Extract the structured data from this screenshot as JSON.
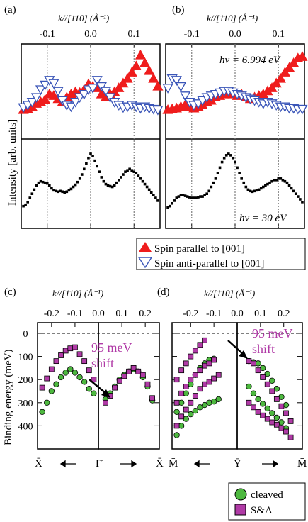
{
  "colors": {
    "red": "#ef1c1c",
    "blue": "#3a55b8",
    "green": "#4db83f",
    "purple": "#b03aa6",
    "axis": "#000000",
    "guide": "#7f7f7f"
  },
  "panel_a": {
    "label": "(a)",
    "kaxis_label": "k//[1̄10] (Å⁻¹)",
    "ticks": [
      "-0.1",
      "0.0",
      "0.1"
    ]
  },
  "panel_b": {
    "label": "(b)",
    "kaxis_label": "k//[1̄10] (Å⁻¹)",
    "ticks": [
      "-0.1",
      "0.0",
      "0.1"
    ],
    "hv_top": "hv = 6.994 eV",
    "hv_bottom": "hv = 30 eV"
  },
  "spin_legend": {
    "parallel": "Spin parallel to [001]",
    "antiparallel": "Spin anti-parallel to [001]"
  },
  "y_label_top": "Intensity [arb. units]",
  "panel_c": {
    "label": "(c)",
    "kaxis_label": "k//[1̄10] (Å⁻¹)",
    "ticks": [
      "-0.2",
      "-0.1",
      "0.0",
      "0.1",
      "0.2"
    ],
    "points": {
      "left": "X̄",
      "mid": "Γ̄",
      "right": "X̄"
    },
    "shift_line1": "95 meV",
    "shift_line2": "shift"
  },
  "panel_d": {
    "label": "(d)",
    "kaxis_label": "k//[1̄10] (Å⁻¹)",
    "ticks": [
      "-0.2",
      "-0.1",
      "0.0",
      "0.1",
      "0.2"
    ],
    "points": {
      "left": "M̄",
      "mid": "Ȳ",
      "right": "M̄"
    },
    "shift_line1": "95 meV",
    "shift_line2": "shift"
  },
  "y_label_bottom": "Binding energy (meV)",
  "bottom_legend": {
    "cleaved": "cleaved",
    "sa": "S&A"
  },
  "chart_data": [
    {
      "type": "scatter",
      "panel": "a-top",
      "xlabel": "k//[1̄10] (Å⁻¹)",
      "ylabel": "Intensity [arb. units]",
      "xlim": [
        -0.16,
        0.16
      ],
      "series": [
        {
          "name": "Spin parallel to [001]",
          "marker": "filled-triangle-up",
          "color": "#ef1c1c",
          "x": [
            -0.155,
            -0.145,
            -0.135,
            -0.125,
            -0.115,
            -0.105,
            -0.095,
            -0.085,
            -0.075,
            -0.065,
            -0.055,
            -0.045,
            -0.035,
            -0.025,
            -0.015,
            -0.005,
            0.005,
            0.015,
            0.025,
            0.035,
            0.045,
            0.055,
            0.065,
            0.075,
            0.085,
            0.095,
            0.105,
            0.115,
            0.125,
            0.135,
            0.145,
            0.155
          ],
          "y": [
            0.32,
            0.33,
            0.36,
            0.4,
            0.42,
            0.45,
            0.52,
            0.5,
            0.46,
            0.42,
            0.48,
            0.52,
            0.55,
            0.54,
            0.58,
            0.65,
            0.62,
            0.6,
            0.52,
            0.48,
            0.52,
            0.55,
            0.6,
            0.66,
            0.72,
            0.8,
            0.88,
            1.02,
            0.92,
            0.82,
            0.72,
            0.62
          ]
        },
        {
          "name": "Spin anti-parallel to [001]",
          "marker": "open-triangle-down",
          "color": "#3a55b8",
          "x": [
            -0.155,
            -0.145,
            -0.135,
            -0.125,
            -0.115,
            -0.105,
            -0.095,
            -0.085,
            -0.075,
            -0.065,
            -0.055,
            -0.045,
            -0.035,
            -0.025,
            -0.015,
            -0.005,
            0.005,
            0.015,
            0.025,
            0.035,
            0.045,
            0.055,
            0.065,
            0.075,
            0.085,
            0.095,
            0.105,
            0.115,
            0.125,
            0.135,
            0.145,
            0.155
          ],
          "y": [
            0.35,
            0.38,
            0.42,
            0.48,
            0.58,
            0.64,
            0.7,
            0.66,
            0.56,
            0.44,
            0.38,
            0.36,
            0.42,
            0.48,
            0.52,
            0.58,
            0.6,
            0.7,
            0.62,
            0.56,
            0.48,
            0.42,
            0.38,
            0.35,
            0.36,
            0.38,
            0.36,
            0.34,
            0.36,
            0.34,
            0.33,
            0.32
          ]
        }
      ]
    },
    {
      "type": "scatter",
      "panel": "a-bottom",
      "xlabel": "k//[1̄10] (Å⁻¹)",
      "ylabel": "Intensity [arb. units]",
      "xlim": [
        -0.16,
        0.16
      ],
      "series": [
        {
          "name": "hv = 30 eV",
          "marker": "square",
          "color": "#000000",
          "x": [
            -0.155,
            -0.15,
            -0.145,
            -0.14,
            -0.135,
            -0.13,
            -0.125,
            -0.12,
            -0.115,
            -0.11,
            -0.105,
            -0.1,
            -0.095,
            -0.09,
            -0.085,
            -0.08,
            -0.075,
            -0.07,
            -0.065,
            -0.06,
            -0.055,
            -0.05,
            -0.045,
            -0.04,
            -0.035,
            -0.03,
            -0.025,
            -0.02,
            -0.015,
            -0.01,
            -0.005,
            0.0,
            0.005,
            0.01,
            0.015,
            0.02,
            0.025,
            0.03,
            0.035,
            0.04,
            0.045,
            0.05,
            0.055,
            0.06,
            0.065,
            0.07,
            0.075,
            0.08,
            0.085,
            0.09,
            0.095,
            0.1,
            0.105,
            0.11,
            0.115,
            0.12,
            0.125,
            0.13,
            0.135,
            0.14,
            0.145,
            0.15,
            0.155
          ],
          "y": [
            0.22,
            0.24,
            0.28,
            0.34,
            0.4,
            0.46,
            0.52,
            0.56,
            0.58,
            0.57,
            0.56,
            0.55,
            0.52,
            0.48,
            0.45,
            0.44,
            0.43,
            0.44,
            0.43,
            0.42,
            0.43,
            0.45,
            0.47,
            0.5,
            0.53,
            0.57,
            0.62,
            0.68,
            0.76,
            0.84,
            0.92,
            0.98,
            0.95,
            0.88,
            0.8,
            0.72,
            0.64,
            0.58,
            0.54,
            0.52,
            0.51,
            0.5,
            0.52,
            0.56,
            0.6,
            0.64,
            0.68,
            0.72,
            0.74,
            0.76,
            0.74,
            0.72,
            0.7,
            0.66,
            0.62,
            0.58,
            0.54,
            0.5,
            0.46,
            0.42,
            0.38,
            0.34,
            0.3
          ]
        }
      ]
    },
    {
      "type": "scatter",
      "panel": "b-top",
      "xlabel": "k//[1̄10] (Å⁻¹)",
      "ylabel": "Intensity [arb. units]",
      "xlim": [
        -0.16,
        0.16
      ],
      "series": [
        {
          "name": "Spin parallel to [001]",
          "marker": "filled-triangle-up",
          "color": "#ef1c1c",
          "x": [
            -0.155,
            -0.145,
            -0.135,
            -0.125,
            -0.115,
            -0.105,
            -0.095,
            -0.085,
            -0.075,
            -0.065,
            -0.055,
            -0.045,
            -0.035,
            -0.025,
            -0.015,
            -0.005,
            0.005,
            0.015,
            0.025,
            0.035,
            0.045,
            0.055,
            0.065,
            0.075,
            0.085,
            0.095,
            0.105,
            0.115,
            0.125,
            0.135,
            0.145,
            0.155
          ],
          "y": [
            0.32,
            0.33,
            0.34,
            0.36,
            0.38,
            0.36,
            0.34,
            0.36,
            0.38,
            0.42,
            0.44,
            0.48,
            0.5,
            0.52,
            0.54,
            0.52,
            0.5,
            0.52,
            0.48,
            0.46,
            0.48,
            0.5,
            0.52,
            0.56,
            0.6,
            0.66,
            0.72,
            0.8,
            0.86,
            0.92,
            0.98,
            1.0
          ]
        },
        {
          "name": "Spin anti-parallel to [001]",
          "marker": "open-triangle-down",
          "color": "#3a55b8",
          "x": [
            -0.155,
            -0.145,
            -0.135,
            -0.125,
            -0.115,
            -0.105,
            -0.095,
            -0.085,
            -0.075,
            -0.065,
            -0.055,
            -0.045,
            -0.035,
            -0.025,
            -0.015,
            -0.005,
            0.005,
            0.015,
            0.025,
            0.035,
            0.045,
            0.055,
            0.065,
            0.075,
            0.085,
            0.095,
            0.105,
            0.115,
            0.125,
            0.135,
            0.145,
            0.155
          ],
          "y": [
            0.6,
            0.72,
            0.7,
            0.62,
            0.5,
            0.42,
            0.38,
            0.4,
            0.44,
            0.48,
            0.5,
            0.52,
            0.54,
            0.56,
            0.56,
            0.54,
            0.52,
            0.5,
            0.48,
            0.46,
            0.44,
            0.42,
            0.4,
            0.42,
            0.4,
            0.38,
            0.36,
            0.36,
            0.34,
            0.34,
            0.33,
            0.33
          ]
        }
      ]
    },
    {
      "type": "scatter",
      "panel": "b-bottom",
      "xlabel": "k//[1̄10] (Å⁻¹)",
      "ylabel": "Intensity [arb. units]",
      "xlim": [
        -0.16,
        0.16
      ],
      "series": [
        {
          "name": "hv = 30 eV",
          "marker": "square",
          "color": "#000000",
          "x": [
            -0.155,
            -0.15,
            -0.145,
            -0.14,
            -0.135,
            -0.13,
            -0.125,
            -0.12,
            -0.115,
            -0.11,
            -0.105,
            -0.1,
            -0.095,
            -0.09,
            -0.085,
            -0.08,
            -0.075,
            -0.07,
            -0.065,
            -0.06,
            -0.055,
            -0.05,
            -0.045,
            -0.04,
            -0.035,
            -0.03,
            -0.025,
            -0.02,
            -0.015,
            -0.01,
            -0.005,
            0.0,
            0.005,
            0.01,
            0.015,
            0.02,
            0.025,
            0.03,
            0.035,
            0.04,
            0.045,
            0.05,
            0.055,
            0.06,
            0.065,
            0.07,
            0.075,
            0.08,
            0.085,
            0.09,
            0.095,
            0.1,
            0.105,
            0.11,
            0.115,
            0.12,
            0.125,
            0.13,
            0.135,
            0.14,
            0.145,
            0.15,
            0.155
          ],
          "y": [
            0.2,
            0.22,
            0.26,
            0.3,
            0.34,
            0.36,
            0.38,
            0.38,
            0.37,
            0.36,
            0.35,
            0.34,
            0.34,
            0.34,
            0.35,
            0.36,
            0.36,
            0.38,
            0.4,
            0.44,
            0.5,
            0.56,
            0.62,
            0.7,
            0.78,
            0.86,
            0.92,
            0.96,
            0.98,
            0.96,
            0.92,
            0.86,
            0.78,
            0.7,
            0.62,
            0.56,
            0.5,
            0.46,
            0.44,
            0.43,
            0.44,
            0.45,
            0.46,
            0.48,
            0.5,
            0.52,
            0.54,
            0.56,
            0.58,
            0.6,
            0.6,
            0.62,
            0.62,
            0.6,
            0.58,
            0.56,
            0.52,
            0.48,
            0.44,
            0.4,
            0.36,
            0.32,
            0.28
          ]
        }
      ]
    },
    {
      "type": "scatter",
      "panel": "c",
      "xlabel": "k//[1̄10] (Å⁻¹)",
      "ylabel": "Binding energy (meV)",
      "ylim": [
        500,
        -50
      ],
      "series": [
        {
          "name": "cleaved",
          "marker": "circle",
          "color": "#4db83f",
          "x": [
            -0.24,
            -0.22,
            -0.2,
            -0.18,
            -0.16,
            -0.14,
            -0.12,
            -0.1,
            -0.08,
            -0.06,
            -0.04,
            -0.02,
            0.03,
            0.05,
            0.07,
            0.09,
            0.11,
            0.13,
            0.15,
            0.17,
            0.19,
            0.21,
            0.23
          ],
          "y": [
            340,
            300,
            250,
            220,
            190,
            170,
            155,
            170,
            190,
            210,
            240,
            260,
            285,
            260,
            230,
            200,
            180,
            165,
            155,
            165,
            190,
            230,
            290
          ]
        },
        {
          "name": "S&A",
          "marker": "square",
          "color": "#b03aa6",
          "x": [
            -0.24,
            -0.22,
            -0.2,
            -0.18,
            -0.16,
            -0.14,
            -0.12,
            -0.1,
            -0.08,
            -0.06,
            -0.04,
            -0.02,
            0.03,
            0.05,
            0.07,
            0.09,
            0.11,
            0.13,
            0.15,
            0.17,
            0.19,
            0.21,
            0.23
          ],
          "y": [
            235,
            195,
            155,
            120,
            95,
            75,
            65,
            60,
            90,
            120,
            160,
            200,
            300,
            270,
            235,
            205,
            185,
            165,
            150,
            165,
            180,
            220,
            280
          ]
        }
      ]
    },
    {
      "type": "scatter",
      "panel": "d",
      "xlabel": "k//[1̄10] (Å⁻¹)",
      "ylabel": "Binding energy (meV)",
      "ylim": [
        500,
        -50
      ],
      "series": [
        {
          "name": "cleaved",
          "marker": "circle",
          "color": "#4db83f",
          "x": [
            -0.26,
            -0.24,
            -0.22,
            -0.2,
            -0.18,
            -0.16,
            -0.14,
            -0.12,
            -0.1,
            -0.08,
            -0.26,
            -0.24,
            -0.22,
            -0.2,
            -0.18,
            -0.16,
            -0.14,
            -0.12,
            -0.1,
            0.05,
            0.07,
            0.09,
            0.11,
            0.13,
            0.15,
            0.17,
            0.19,
            0.21,
            0.05,
            0.07,
            0.09,
            0.11,
            0.13,
            0.15,
            0.17,
            0.19,
            0.21
          ],
          "y": [
            440,
            400,
            370,
            350,
            335,
            320,
            310,
            300,
            295,
            285,
            340,
            300,
            260,
            220,
            180,
            150,
            130,
            115,
            110,
            120,
            125,
            130,
            150,
            175,
            205,
            240,
            275,
            310,
            230,
            260,
            285,
            305,
            325,
            345,
            365,
            385,
            410
          ]
        },
        {
          "name": "S&A",
          "marker": "square",
          "color": "#b03aa6",
          "x": [
            -0.26,
            -0.24,
            -0.22,
            -0.2,
            -0.18,
            -0.16,
            -0.14,
            -0.12,
            -0.1,
            -0.08,
            -0.26,
            -0.24,
            -0.22,
            -0.2,
            -0.18,
            -0.16,
            -0.14,
            -0.12,
            -0.1,
            -0.26,
            -0.24,
            -0.22,
            -0.2,
            -0.18,
            -0.16,
            -0.14,
            0.05,
            0.07,
            0.09,
            0.11,
            0.13,
            0.15,
            0.17,
            0.19,
            0.21,
            0.23,
            0.05,
            0.07,
            0.09,
            0.11,
            0.13,
            0.15,
            0.17,
            0.19,
            0.21,
            0.23
          ],
          "y": [
            400,
            360,
            330,
            300,
            270,
            240,
            220,
            210,
            195,
            180,
            300,
            260,
            230,
            200,
            180,
            160,
            140,
            130,
            115,
            200,
            160,
            130,
            100,
            75,
            50,
            30,
            120,
            130,
            160,
            190,
            220,
            250,
            285,
            315,
            345,
            380,
            300,
            320,
            340,
            355,
            370,
            385,
            395,
            410,
            425,
            450
          ]
        }
      ]
    }
  ]
}
